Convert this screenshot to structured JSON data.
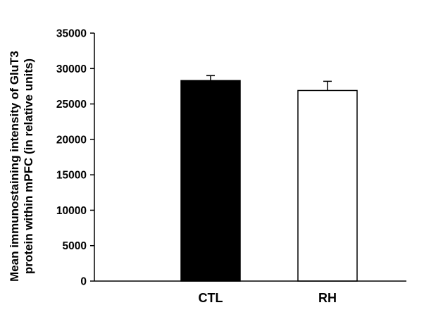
{
  "chart_data": {
    "type": "bar",
    "categories": [
      "CTL",
      "RH"
    ],
    "values": [
      28300,
      26900
    ],
    "errors": [
      700,
      1300
    ],
    "bar_colors": [
      "#000000",
      "#ffffff"
    ],
    "ylabel_lines": [
      "Mean immunostaining intensity of GluT3",
      "protein within mPFC (in relative units)"
    ],
    "yticks": [
      0,
      5000,
      10000,
      15000,
      20000,
      25000,
      30000,
      35000
    ],
    "ylim": [
      0,
      35000
    ],
    "grid": false,
    "legend": "none"
  }
}
